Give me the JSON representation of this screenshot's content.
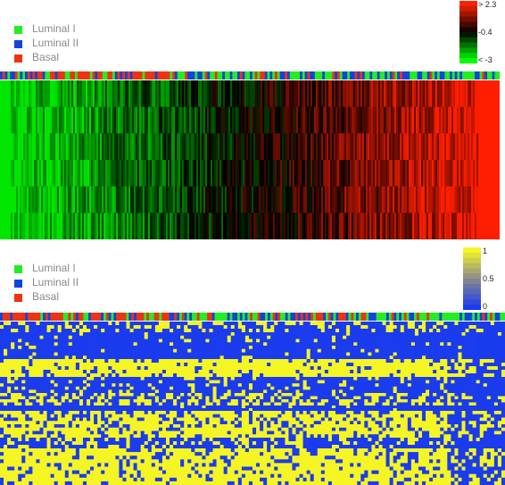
{
  "legend_top": {
    "items": [
      {
        "label": "Luminal I",
        "color": "#22ee22"
      },
      {
        "label": "Luminal II",
        "color": "#1144dd"
      },
      {
        "label": "Basal",
        "color": "#ee3311"
      }
    ]
  },
  "legend_bottom": {
    "items": [
      {
        "label": "Luminal I",
        "color": "#22ee22"
      },
      {
        "label": "Luminal II",
        "color": "#1144dd"
      },
      {
        "label": "Basal",
        "color": "#ee3311"
      }
    ]
  },
  "colorbar_top": {
    "ticks": [
      "> 2.3",
      "-0.4",
      "< -3"
    ],
    "colors": [
      "#ff2200",
      "#000000",
      "#00ff00"
    ]
  },
  "colorbar_bottom": {
    "ticks": [
      "1",
      "0.5",
      "0"
    ],
    "colors": [
      "#f5f524",
      "#8a8a8a",
      "#1a3bee"
    ]
  },
  "chart_data": [
    {
      "type": "heatmap",
      "title": "",
      "description_values": "expression heatmap, samples ordered left to right from green (low) to red (high)",
      "value_range": [
        -3,
        2.3
      ],
      "color_scale": {
        "low": "#00ff00",
        "mid": "#000000",
        "high": "#ff2200"
      },
      "sample_annotation_classes": [
        "Luminal I",
        "Luminal II",
        "Basal"
      ],
      "row_bands": 6
    },
    {
      "type": "heatmap",
      "title": "",
      "value_range": [
        0,
        1
      ],
      "color_scale": {
        "low": "#1a3bee",
        "mid": "#8a8a8a",
        "high": "#f5f524"
      },
      "sample_annotation_classes": [
        "Luminal I",
        "Luminal II",
        "Basal"
      ]
    }
  ]
}
